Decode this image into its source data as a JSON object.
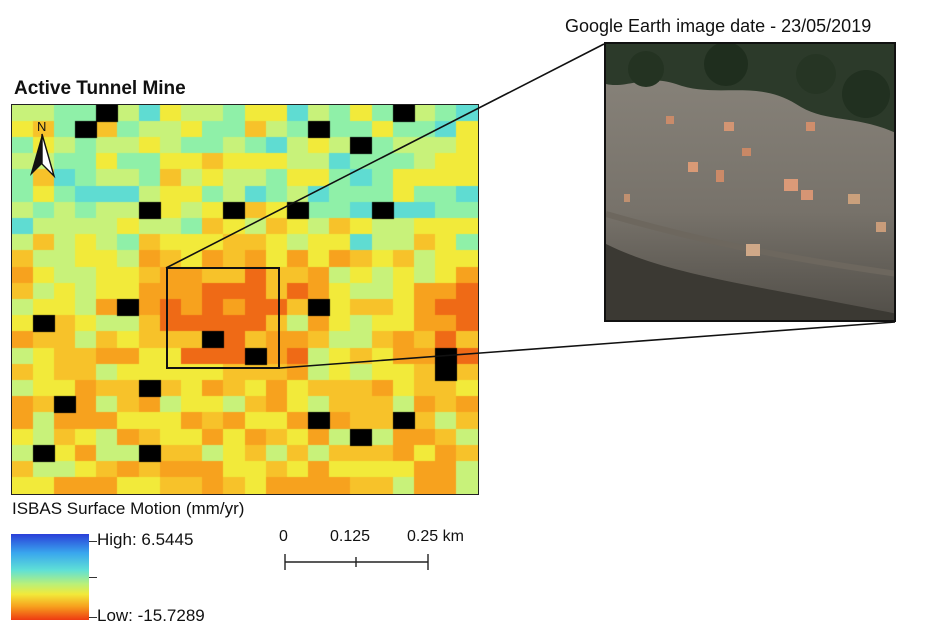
{
  "map": {
    "title": "Active Tunnel Mine"
  },
  "north_arrow": {
    "label": "N"
  },
  "inset": {
    "caption": "Google Earth image date - 23/05/2019"
  },
  "legend": {
    "title": "ISBAS Surface Motion (mm/yr)",
    "high_label": "High: 6.5445",
    "low_label": "Low: -15.7289",
    "colors": [
      "#2a3fd8",
      "#39a6ee",
      "#5fe0d6",
      "#b8f07a",
      "#f2ea3a",
      "#f7a21e",
      "#ee3a12"
    ]
  },
  "scale_bar": {
    "tick_0": "0",
    "tick_1": "0.125",
    "tick_2": "0.25 km"
  }
}
